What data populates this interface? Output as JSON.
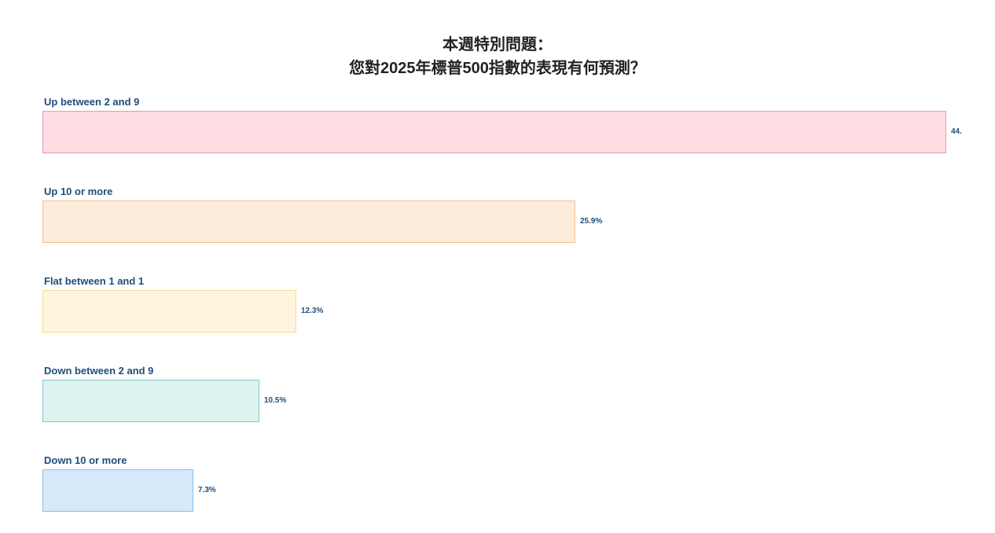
{
  "chart_data": {
    "type": "bar",
    "orientation": "horizontal",
    "title_lines": [
      "本週特別問題：",
      "您對2025年標普500指數的表現有何預測？"
    ],
    "categories": [
      "Up between 2 and 9",
      "Up 10 or more",
      "Flat between 1 and 1",
      "Down between 2 and 9",
      "Down 10 or more"
    ],
    "values": [
      44.0,
      25.9,
      12.3,
      10.5,
      7.3
    ],
    "data_labels": [
      "44.",
      "25.9%",
      "12.3%",
      "10.5%",
      "7.3%"
    ],
    "unit": "%",
    "xlim": [
      0,
      44.2
    ],
    "grid": false,
    "legend": "none",
    "colors": [
      {
        "fill": "#ffdde3",
        "border": "#e89aae"
      },
      {
        "fill": "#fdebdb",
        "border": "#f7c28f"
      },
      {
        "fill": "#fff5df",
        "border": "#fbd98e"
      },
      {
        "fill": "#ddf3f0",
        "border": "#7fcdc6"
      },
      {
        "fill": "#d6e9fa",
        "border": "#86c1ea"
      }
    ]
  }
}
